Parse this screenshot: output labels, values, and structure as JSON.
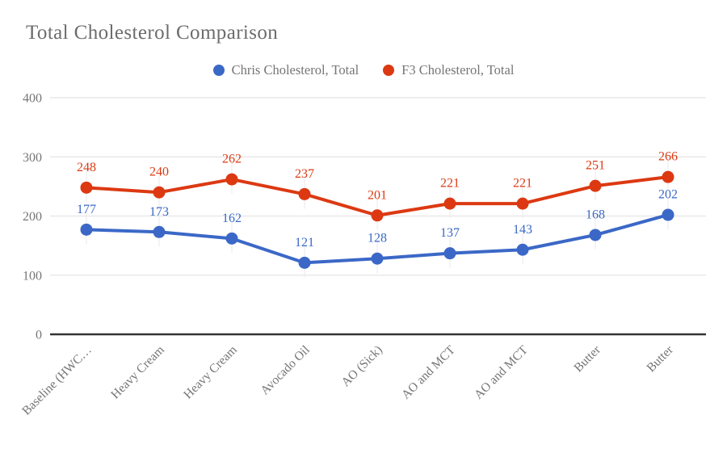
{
  "title": "Total Cholesterol Comparison",
  "colors": {
    "series_chris": "#3b68c7",
    "series_f3": "#dc3912",
    "grid": "#e4e4e4",
    "stem": "#ededed",
    "axis_line": "#333333",
    "axis_text": "#757575",
    "title_text": "#6c6c6c",
    "background": "#ffffff"
  },
  "chart_data": {
    "type": "line",
    "title": "Total Cholesterol Comparison",
    "categories": [
      "Baseline (HWC…",
      "Heavy Cream",
      "Heavy Cream",
      "Avocado Oil",
      "AO (Sick)",
      "AO and MCT",
      "AO and MCT",
      "Butter",
      "Butter"
    ],
    "series": [
      {
        "name": "Chris Cholesterol, Total",
        "color": "#3b68c7",
        "values": [
          177,
          173,
          162,
          121,
          128,
          137,
          143,
          168,
          202
        ]
      },
      {
        "name": "F3 Cholesterol, Total",
        "color": "#dc3912",
        "values": [
          248,
          240,
          262,
          237,
          201,
          221,
          221,
          251,
          266
        ]
      }
    ],
    "ylim": [
      0,
      400
    ],
    "yticks": [
      0,
      100,
      200,
      300,
      400
    ],
    "grid": "horizontal",
    "legend_position": "top-center",
    "data_labels_shown": true,
    "x_label_rotation_deg": -45
  }
}
